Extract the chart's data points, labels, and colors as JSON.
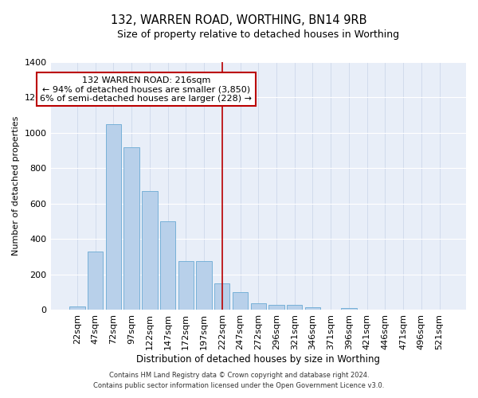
{
  "title": "132, WARREN ROAD, WORTHING, BN14 9RB",
  "subtitle": "Size of property relative to detached houses in Worthing",
  "xlabel": "Distribution of detached houses by size in Worthing",
  "ylabel": "Number of detached properties",
  "bar_labels": [
    "22sqm",
    "47sqm",
    "72sqm",
    "97sqm",
    "122sqm",
    "147sqm",
    "172sqm",
    "197sqm",
    "222sqm",
    "247sqm",
    "272sqm",
    "296sqm",
    "321sqm",
    "346sqm",
    "371sqm",
    "396sqm",
    "421sqm",
    "446sqm",
    "471sqm",
    "496sqm",
    "521sqm"
  ],
  "bar_values": [
    20,
    330,
    1050,
    920,
    670,
    500,
    275,
    275,
    150,
    100,
    35,
    25,
    25,
    15,
    0,
    10,
    0,
    0,
    0,
    0,
    0
  ],
  "bar_color": "#b8d0ea",
  "bar_edge_color": "#6aaad4",
  "background_color": "#e8eef8",
  "grid_color": "#d0d8e8",
  "red_line_index": 8,
  "red_line_color": "#bb0000",
  "annotation_line1": "132 WARREN ROAD: 216sqm",
  "annotation_line2": "← 94% of detached houses are smaller (3,850)",
  "annotation_line3": "6% of semi-detached houses are larger (228) →",
  "annotation_box_color": "#bb0000",
  "ylim": [
    0,
    1400
  ],
  "yticks": [
    0,
    200,
    400,
    600,
    800,
    1000,
    1200,
    1400
  ],
  "footnote1": "Contains HM Land Registry data © Crown copyright and database right 2024.",
  "footnote2": "Contains public sector information licensed under the Open Government Licence v3.0."
}
